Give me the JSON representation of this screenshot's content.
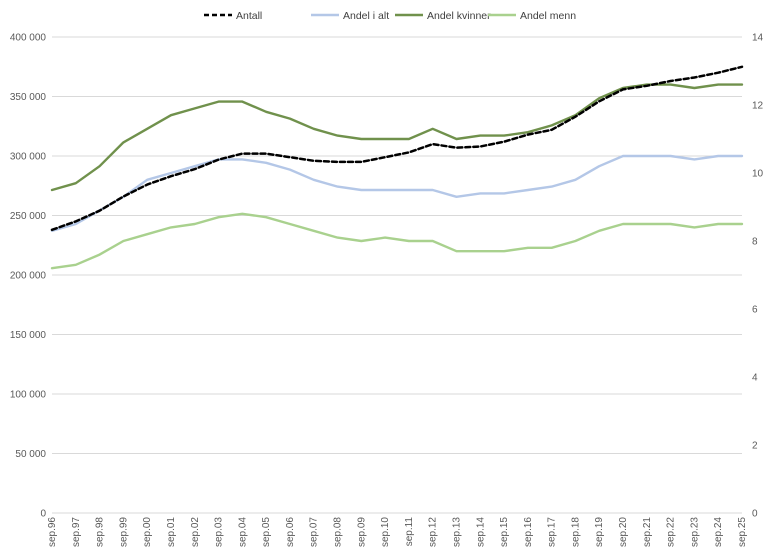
{
  "chart_data": {
    "type": "line",
    "title": "",
    "legend_position": "top",
    "grid": "horizontal",
    "x_labels": [
      "sep.96",
      "sep.97",
      "sep.98",
      "sep.99",
      "sep.00",
      "sep.01",
      "sep.02",
      "sep.03",
      "sep.04",
      "sep.05",
      "sep.06",
      "sep.07",
      "sep.08",
      "sep.09",
      "sep.10",
      "sep.11",
      "sep.12",
      "sep.13",
      "sep.14",
      "sep.15",
      "sep.16",
      "sep.17",
      "sep.18",
      "sep.19",
      "sep.20",
      "sep.21",
      "sep.22",
      "sep.23",
      "sep.24",
      "sep.25"
    ],
    "y_left": {
      "ylim": [
        0,
        400000
      ],
      "tick_labels": [
        "0",
        "50 000",
        "100 000",
        "150 000",
        "200 000",
        "250 000",
        "300 000",
        "350 000",
        "400 000"
      ]
    },
    "y_right": {
      "ylim": [
        0,
        14
      ],
      "tick_labels": [
        "0",
        "2",
        "4",
        "6",
        "8",
        "10",
        "12",
        "14"
      ]
    },
    "series": [
      {
        "name": "Antall",
        "axis": "left",
        "color": "#000000",
        "style": "dashed",
        "values": [
          238000,
          245000,
          254000,
          266000,
          276000,
          283000,
          289000,
          297000,
          302000,
          302000,
          299000,
          296000,
          295000,
          295000,
          299000,
          303000,
          310000,
          307000,
          308000,
          312000,
          318000,
          322000,
          333000,
          346000,
          356000,
          359000,
          363000,
          366000,
          370000,
          375000
        ]
      },
      {
        "name": "Andel i alt",
        "axis": "right",
        "color": "#b4c7e7",
        "style": "solid",
        "values": [
          8.3,
          8.5,
          8.9,
          9.3,
          9.8,
          10.0,
          10.2,
          10.4,
          10.4,
          10.3,
          10.1,
          9.8,
          9.6,
          9.5,
          9.5,
          9.5,
          9.5,
          9.3,
          9.4,
          9.4,
          9.5,
          9.6,
          9.8,
          10.2,
          10.5,
          10.5,
          10.5,
          10.4,
          10.5,
          10.5
        ]
      },
      {
        "name": "Andel kvinner",
        "axis": "right",
        "color": "#70914c",
        "style": "solid",
        "values": [
          9.5,
          9.7,
          10.2,
          10.9,
          11.3,
          11.7,
          11.9,
          12.1,
          12.1,
          11.8,
          11.6,
          11.3,
          11.1,
          11.0,
          11.0,
          11.0,
          11.3,
          11.0,
          11.1,
          11.1,
          11.2,
          11.4,
          11.7,
          12.2,
          12.5,
          12.6,
          12.6,
          12.5,
          12.6,
          12.6
        ]
      },
      {
        "name": "Andel menn",
        "axis": "right",
        "color": "#a9d18e",
        "style": "solid",
        "values": [
          7.2,
          7.3,
          7.6,
          8.0,
          8.2,
          8.4,
          8.5,
          8.7,
          8.8,
          8.7,
          8.5,
          8.3,
          8.1,
          8.0,
          8.1,
          8.0,
          8.0,
          7.7,
          7.7,
          7.7,
          7.8,
          7.8,
          8.0,
          8.3,
          8.5,
          8.5,
          8.5,
          8.4,
          8.5,
          8.5
        ]
      }
    ]
  }
}
